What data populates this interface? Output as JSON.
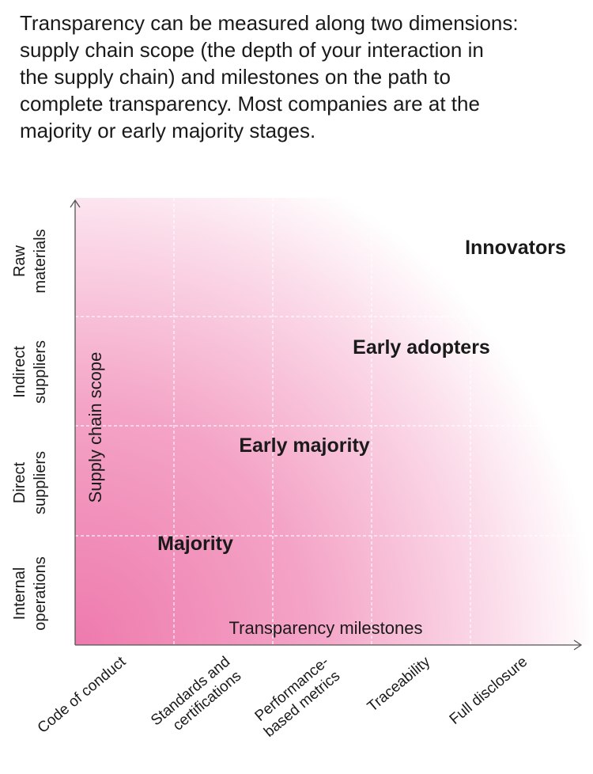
{
  "intro": {
    "lines": [
      "Transparency can be measured along two dimensions:",
      "supply chain scope (the depth of your interaction in",
      "the supply chain) and milestones on the path to",
      "complete transparency. Most companies are at the",
      "majority or early majority stages."
    ]
  },
  "diagram": {
    "y_axis_title": "Supply chain scope",
    "x_axis_title": "Transparency milestones",
    "rows": [
      {
        "lines": [
          "Raw",
          "materials"
        ]
      },
      {
        "lines": [
          "Indirect",
          "suppliers"
        ]
      },
      {
        "lines": [
          "Direct",
          "suppliers"
        ]
      },
      {
        "lines": [
          "Internal",
          "operations"
        ]
      }
    ],
    "columns": [
      {
        "lines": [
          "Code of conduct"
        ]
      },
      {
        "lines": [
          "Standards and",
          "certifications"
        ]
      },
      {
        "lines": [
          "Performance-",
          "based metrics"
        ]
      },
      {
        "lines": [
          "Traceability"
        ]
      },
      {
        "lines": [
          "Full disclosure"
        ]
      }
    ],
    "regions": [
      "Innovators",
      "Early adopters",
      "Early majority",
      "Majority"
    ]
  }
}
